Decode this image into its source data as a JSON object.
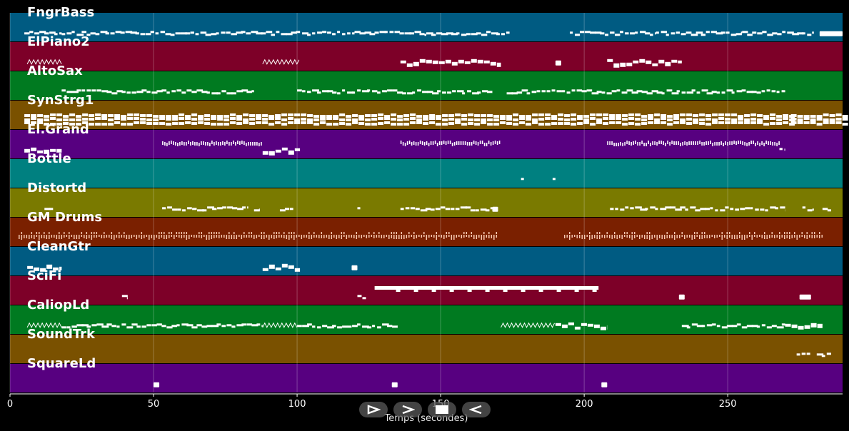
{
  "axis": {
    "xlabel": "Temps (secondes)",
    "ticks": [
      "0",
      "50",
      "100",
      "150",
      "200",
      "250"
    ],
    "x_range": [
      0,
      290
    ]
  },
  "tracks": [
    {
      "name": "FngrBass",
      "color": "#005b82",
      "notes": [
        [
          5,
          18,
          "line"
        ],
        [
          18,
          28,
          "dots"
        ],
        [
          28,
          70,
          "dots"
        ],
        [
          70,
          100,
          "dots"
        ],
        [
          100,
          120,
          "dots"
        ],
        [
          120,
          145,
          "dots"
        ],
        [
          145,
          174,
          "dots"
        ],
        [
          195,
          225,
          "dots"
        ],
        [
          225,
          255,
          "dots"
        ],
        [
          255,
          280,
          "dots"
        ],
        [
          282,
          290,
          "block"
        ]
      ]
    },
    {
      "name": "ElPiano2",
      "color": "#7d0028",
      "notes": [
        [
          6,
          18,
          "wave"
        ],
        [
          88,
          101,
          "wave"
        ],
        [
          136,
          171,
          "blocks"
        ],
        [
          190,
          192,
          "block"
        ],
        [
          208,
          234,
          "blocks"
        ]
      ]
    },
    {
      "name": "AltoSax",
      "color": "#007a20",
      "notes": [
        [
          18,
          85,
          "dots"
        ],
        [
          100,
          168,
          "dots"
        ],
        [
          173,
          270,
          "dots"
        ]
      ]
    },
    {
      "name": "SynStrg1",
      "color": "#7a5100",
      "notes": [
        [
          5,
          272,
          "dense"
        ],
        [
          272,
          290,
          "dense"
        ]
      ]
    },
    {
      "name": "El.Grand",
      "color": "#570080",
      "notes": [
        [
          5,
          18,
          "blocks"
        ],
        [
          53,
          88,
          "comb"
        ],
        [
          88,
          101,
          "blocks"
        ],
        [
          136,
          171,
          "comb"
        ],
        [
          208,
          268,
          "comb"
        ],
        [
          268,
          270,
          "dots"
        ]
      ]
    },
    {
      "name": "Bottle",
      "color": "#008080",
      "notes": [
        [
          178,
          179,
          "dots"
        ],
        [
          189,
          190,
          "dots"
        ]
      ]
    },
    {
      "name": "Distortd",
      "color": "#7a7a00",
      "notes": [
        [
          12,
          15,
          "line"
        ],
        [
          53,
          83,
          "dots"
        ],
        [
          85,
          87,
          "line"
        ],
        [
          94,
          99,
          "dots"
        ],
        [
          121,
          122,
          "line"
        ],
        [
          136,
          168,
          "dots"
        ],
        [
          168,
          170,
          "block"
        ],
        [
          209,
          270,
          "dots"
        ],
        [
          276,
          280,
          "dots"
        ],
        [
          283,
          286,
          "dots"
        ]
      ]
    },
    {
      "name": "GM Drums",
      "color": "#7a2000",
      "notes": [
        [
          3,
          170,
          "perc"
        ],
        [
          193,
          283,
          "perc"
        ]
      ]
    },
    {
      "name": "CleanGtr",
      "color": "#005b82",
      "notes": [
        [
          6,
          18,
          "blocks"
        ],
        [
          88,
          101,
          "blocks"
        ],
        [
          119,
          121,
          "block"
        ]
      ]
    },
    {
      "name": "SciFi",
      "color": "#7d0028",
      "notes": [
        [
          39,
          41,
          "line"
        ],
        [
          121,
          124,
          "line"
        ],
        [
          127,
          205,
          "long"
        ],
        [
          233,
          234,
          "block"
        ],
        [
          275,
          279,
          "block"
        ]
      ]
    },
    {
      "name": "CaliopLd",
      "color": "#007a20",
      "notes": [
        [
          6,
          18,
          "wave"
        ],
        [
          18,
          88,
          "dots"
        ],
        [
          88,
          100,
          "wave"
        ],
        [
          100,
          135,
          "dots"
        ],
        [
          171,
          190,
          "wave"
        ],
        [
          190,
          208,
          "blocks"
        ],
        [
          234,
          270,
          "dots"
        ],
        [
          270,
          283,
          "blocks"
        ]
      ]
    },
    {
      "name": "SoundTrk",
      "color": "#7a5100",
      "notes": [
        [
          274,
          279,
          "line"
        ],
        [
          281,
          286,
          "line"
        ]
      ]
    },
    {
      "name": "SquareLd",
      "color": "#570080",
      "notes": [
        [
          50,
          52,
          "block"
        ],
        [
          133,
          135,
          "block"
        ],
        [
          206,
          208,
          "block"
        ]
      ]
    }
  ],
  "controls": [
    {
      "id": "play",
      "icon": "play-icon"
    },
    {
      "id": "forward",
      "icon": "forward-icon"
    },
    {
      "id": "stop",
      "icon": "stop-icon"
    },
    {
      "id": "back",
      "icon": "back-icon"
    }
  ]
}
